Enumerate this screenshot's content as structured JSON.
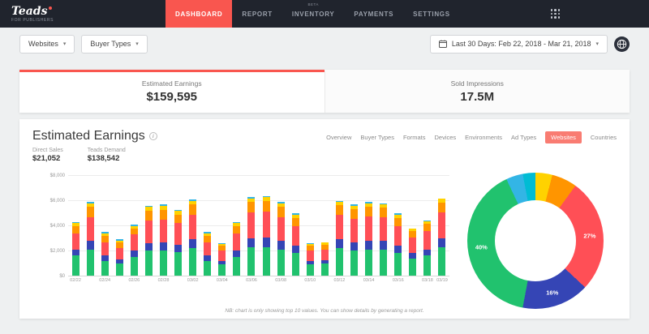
{
  "header": {
    "logo": "Teads",
    "logo_sub": "FOR PUBLISHERS",
    "nav": [
      {
        "label": "DASHBOARD",
        "active": true
      },
      {
        "label": "REPORT",
        "active": false
      },
      {
        "label": "INVENTORY",
        "badge": "BETA",
        "active": false
      },
      {
        "label": "PAYMENTS",
        "active": false
      },
      {
        "label": "SETTINGS",
        "active": false
      }
    ]
  },
  "toolbar": {
    "filters": [
      {
        "label": "Websites"
      },
      {
        "label": "Buyer Types"
      }
    ],
    "date_range": "Last 30 Days: Feb 22, 2018 - Mar 21, 2018"
  },
  "summary_tabs": [
    {
      "label": "Estimated Earnings",
      "value": "$159,595",
      "active": true
    },
    {
      "label": "Sold Impressions",
      "value": "17.5M",
      "active": false
    }
  ],
  "main": {
    "title": "Estimated Earnings",
    "stats": [
      {
        "label": "Direct Sales",
        "value": "$21,052"
      },
      {
        "label": "Teads Demand",
        "value": "$138,542"
      }
    ],
    "tabs": [
      {
        "label": "Overview",
        "active": false
      },
      {
        "label": "Buyer Types",
        "active": false
      },
      {
        "label": "Formats",
        "active": false
      },
      {
        "label": "Devices",
        "active": false
      },
      {
        "label": "Environments",
        "active": false
      },
      {
        "label": "Ad Types",
        "active": false
      },
      {
        "label": "Websites",
        "active": true
      },
      {
        "label": "Countries",
        "active": false
      }
    ],
    "footnote": "NB: chart is only showing top 10 values. You can show details by generating a report."
  },
  "colors": {
    "accent": "#f9564f",
    "navbar_bg": "#20242d",
    "active_filter_bg": "#f97c72"
  },
  "chart_data": [
    {
      "type": "bar",
      "stacked": true,
      "title": "Estimated Earnings per day",
      "ylim": [
        0,
        8000
      ],
      "yticks": [
        {
          "v": 0,
          "label": "$0"
        },
        {
          "v": 2000,
          "label": "$2,000"
        },
        {
          "v": 4000,
          "label": "$4,000"
        },
        {
          "v": 6000,
          "label": "$6,000"
        },
        {
          "v": 8000,
          "label": "$8,000"
        }
      ],
      "series": [
        {
          "name": "segment-green",
          "color": "#21c26e"
        },
        {
          "name": "segment-blue",
          "color": "#3545b5"
        },
        {
          "name": "segment-red",
          "color": "#ff4f56"
        },
        {
          "name": "segment-orange",
          "color": "#ff9500"
        },
        {
          "name": "segment-yellow",
          "color": "#ffd200"
        },
        {
          "name": "segment-cyan",
          "color": "#33b5e5"
        }
      ],
      "bars": [
        {
          "date": "02/22",
          "label": "02/22",
          "values": [
            1600,
            500,
            1300,
            600,
            200,
            100
          ]
        },
        {
          "date": "02/23",
          "label": "",
          "values": [
            2100,
            700,
            1900,
            800,
            300,
            100
          ]
        },
        {
          "date": "02/24",
          "label": "02/24",
          "values": [
            1200,
            400,
            1100,
            500,
            200,
            100
          ]
        },
        {
          "date": "02/25",
          "label": "",
          "values": [
            1000,
            300,
            900,
            450,
            150,
            100
          ]
        },
        {
          "date": "02/26",
          "label": "02/26",
          "values": [
            1500,
            500,
            1300,
            500,
            200,
            100
          ]
        },
        {
          "date": "02/27",
          "label": "",
          "values": [
            2000,
            600,
            1800,
            800,
            300,
            100
          ]
        },
        {
          "date": "02/28",
          "label": "02/28",
          "values": [
            2000,
            700,
            1800,
            800,
            300,
            100
          ]
        },
        {
          "date": "03/01",
          "label": "",
          "values": [
            1900,
            600,
            1700,
            700,
            300,
            100
          ]
        },
        {
          "date": "03/02",
          "label": "03/02",
          "values": [
            2200,
            700,
            2000,
            800,
            300,
            100
          ]
        },
        {
          "date": "03/03",
          "label": "",
          "values": [
            1200,
            400,
            1100,
            500,
            200,
            100
          ]
        },
        {
          "date": "03/04",
          "label": "03/04",
          "values": [
            900,
            300,
            800,
            400,
            150,
            50
          ]
        },
        {
          "date": "03/05",
          "label": "",
          "values": [
            1500,
            500,
            1400,
            600,
            200,
            100
          ]
        },
        {
          "date": "03/06",
          "label": "03/06",
          "values": [
            2300,
            700,
            2100,
            800,
            300,
            100
          ]
        },
        {
          "date": "03/07",
          "label": "",
          "values": [
            2300,
            750,
            2100,
            850,
            300,
            100
          ]
        },
        {
          "date": "03/08",
          "label": "03/08",
          "values": [
            2100,
            700,
            1900,
            800,
            300,
            100
          ]
        },
        {
          "date": "03/09",
          "label": "",
          "values": [
            1800,
            600,
            1600,
            600,
            300,
            100
          ]
        },
        {
          "date": "03/10",
          "label": "03/10",
          "values": [
            900,
            300,
            800,
            400,
            150,
            50
          ]
        },
        {
          "date": "03/11",
          "label": "",
          "values": [
            950,
            300,
            850,
            400,
            150,
            50
          ]
        },
        {
          "date": "03/12",
          "label": "03/12",
          "values": [
            2200,
            700,
            1950,
            800,
            250,
            100
          ]
        },
        {
          "date": "03/13",
          "label": "",
          "values": [
            2000,
            700,
            1850,
            800,
            250,
            100
          ]
        },
        {
          "date": "03/14",
          "label": "03/14",
          "values": [
            2100,
            700,
            1950,
            800,
            250,
            100
          ]
        },
        {
          "date": "03/15",
          "label": "",
          "values": [
            2100,
            700,
            1900,
            750,
            250,
            100
          ]
        },
        {
          "date": "03/16",
          "label": "03/16",
          "values": [
            1800,
            600,
            1600,
            650,
            250,
            100
          ]
        },
        {
          "date": "03/17",
          "label": "",
          "values": [
            1350,
            450,
            1250,
            500,
            200,
            50
          ]
        },
        {
          "date": "03/18",
          "label": "03/18",
          "values": [
            1600,
            500,
            1450,
            600,
            200,
            50
          ]
        },
        {
          "date": "03/19",
          "label": "03/19",
          "values": [
            2250,
            750,
            2050,
            800,
            300,
            50
          ]
        }
      ]
    },
    {
      "type": "pie",
      "donut": true,
      "segments": [
        {
          "name": "segment-yellow",
          "color": "#ffd200",
          "pct": 4,
          "label": ""
        },
        {
          "name": "segment-orange",
          "color": "#ff9500",
          "pct": 6,
          "label": ""
        },
        {
          "name": "segment-red",
          "color": "#ff4f56",
          "pct": 27,
          "label": "27%"
        },
        {
          "name": "segment-blue",
          "color": "#3545b5",
          "pct": 16,
          "label": "16%"
        },
        {
          "name": "segment-green",
          "color": "#21c26e",
          "pct": 40,
          "label": "40%"
        },
        {
          "name": "segment-cyan",
          "color": "#33b5e5",
          "pct": 4,
          "label": ""
        },
        {
          "name": "segment-teal",
          "color": "#00bcd4",
          "pct": 3,
          "label": ""
        }
      ]
    }
  ]
}
